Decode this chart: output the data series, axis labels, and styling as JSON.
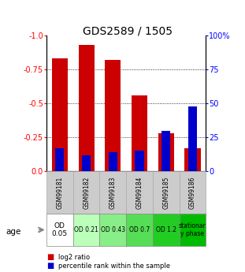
{
  "title": "GDS2589 / 1505",
  "samples": [
    "GSM99181",
    "GSM99182",
    "GSM99183",
    "GSM99184",
    "GSM99185",
    "GSM99186"
  ],
  "log2_ratio": [
    -0.83,
    -0.93,
    -0.82,
    -0.56,
    -0.28,
    -0.17
  ],
  "percentile_rank": [
    17,
    12,
    14,
    15,
    30,
    48
  ],
  "ylim_left": [
    -1.0,
    0.0
  ],
  "ylim_right": [
    0,
    100
  ],
  "yticks_left": [
    0.0,
    -0.25,
    -0.5,
    -0.75,
    -1.0
  ],
  "yticks_right": [
    0,
    25,
    50,
    75,
    100
  ],
  "bar_color": "#cc0000",
  "percentile_color": "#0000cc",
  "age_labels": [
    "OD\n0.05",
    "OD 0.21",
    "OD 0.43",
    "OD 0.7",
    "OD 1.2",
    "stationar\ny phase"
  ],
  "age_colors": [
    "#ffffff",
    "#ccffcc",
    "#99ee99",
    "#66dd66",
    "#33cc33",
    "#00cc00"
  ],
  "sample_bg_color": "#cccccc",
  "legend_red_label": "log2 ratio",
  "legend_blue_label": "percentile rank within the sample",
  "title_fontsize": 10,
  "tick_fontsize": 7,
  "bar_width": 0.6
}
